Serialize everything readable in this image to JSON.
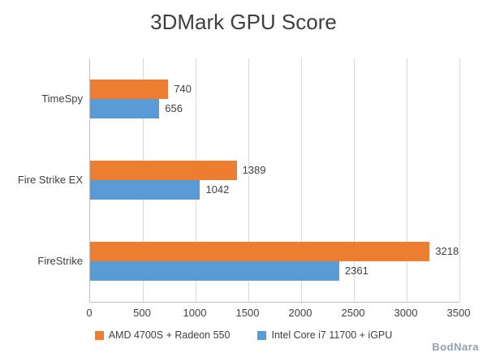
{
  "watermark": "BodNara",
  "chart_data": {
    "type": "bar",
    "orientation": "horizontal",
    "title": "3DMark GPU Score",
    "categories": [
      "TimeSpy",
      "Fire Strike EX",
      "FireStrike"
    ],
    "series": [
      {
        "name": "AMD 4700S + Radeon 550",
        "color": "#ED7D31",
        "values": [
          740,
          1389,
          3218
        ]
      },
      {
        "name": "Intel Core i7 11700 + iGPU",
        "color": "#5B9BD5",
        "values": [
          656,
          1042,
          2361
        ]
      }
    ],
    "xlim": [
      0,
      3500
    ],
    "xticks": [
      0,
      500,
      1000,
      1500,
      2000,
      2500,
      3000,
      3500
    ],
    "grid": "vertical",
    "legend_position": "bottom",
    "value_labels": true
  }
}
